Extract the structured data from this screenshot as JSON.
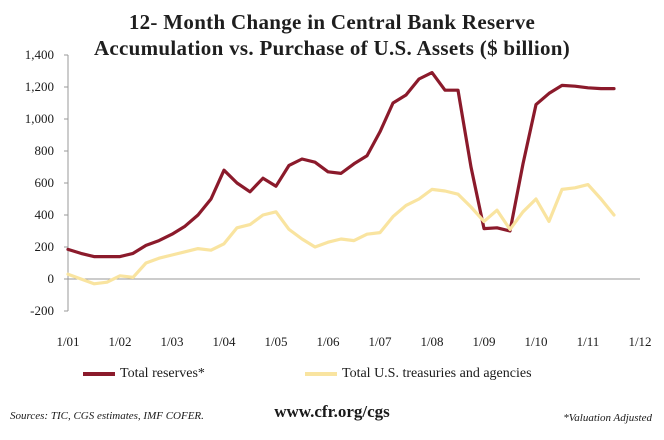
{
  "title_line1": "12- Month Change in Central Bank Reserve",
  "title_line2": "Accumulation vs. Purchase of U.S. Assets ($ billion)",
  "footer": {
    "sources": "Sources: TIC, CGS estimates, IMF COFER.",
    "site": "www.cfr.org/cgs",
    "note": "*Valuation Adjusted"
  },
  "colors": {
    "reserves": "#8b1a2b",
    "us_assets": "#f9e4a0",
    "axis": "#999999"
  },
  "chart_data": {
    "type": "line",
    "xlabel": "",
    "ylabel": "",
    "ylim": [
      -200,
      1400
    ],
    "yticks": [
      -200,
      0,
      200,
      400,
      600,
      800,
      1000,
      1200,
      1400
    ],
    "ytick_labels": [
      "-200",
      "0",
      "200",
      "400",
      "600",
      "800",
      "1,000",
      "1,200",
      "1,400"
    ],
    "xlim": [
      2001.0,
      2012.0
    ],
    "xticks": [
      2001,
      2002,
      2003,
      2004,
      2005,
      2006,
      2007,
      2008,
      2009,
      2010,
      2011,
      2012
    ],
    "xtick_labels": [
      "1/01",
      "1/02",
      "1/03",
      "1/04",
      "1/05",
      "1/06",
      "1/07",
      "1/08",
      "1/09",
      "1/10",
      "1/11",
      "1/12"
    ],
    "grid": false,
    "legend_position": "bottom",
    "series": [
      {
        "name": "Total reserves*",
        "x": [
          2001.0,
          2001.25,
          2001.5,
          2001.75,
          2002.0,
          2002.25,
          2002.5,
          2002.75,
          2003.0,
          2003.25,
          2003.5,
          2003.75,
          2004.0,
          2004.25,
          2004.5,
          2004.75,
          2005.0,
          2005.25,
          2005.5,
          2005.75,
          2006.0,
          2006.25,
          2006.5,
          2006.75,
          2007.0,
          2007.25,
          2007.5,
          2007.75,
          2008.0,
          2008.25,
          2008.5,
          2008.75,
          2009.0,
          2009.25,
          2009.5,
          2009.75,
          2010.0,
          2010.25,
          2010.5,
          2010.75,
          2011.0,
          2011.25,
          2011.5
        ],
        "values": [
          185,
          160,
          140,
          140,
          140,
          160,
          210,
          240,
          280,
          330,
          400,
          500,
          680,
          600,
          545,
          630,
          580,
          710,
          750,
          730,
          670,
          660,
          720,
          770,
          920,
          1100,
          1150,
          1250,
          1290,
          1180,
          1180,
          700,
          315,
          320,
          300,
          720,
          1090,
          1160,
          1210,
          1205,
          1195,
          1190,
          1190
        ]
      },
      {
        "name": "Total U.S. treasuries and agencies",
        "x": [
          2001.0,
          2001.25,
          2001.5,
          2001.75,
          2002.0,
          2002.25,
          2002.5,
          2002.75,
          2003.0,
          2003.25,
          2003.5,
          2003.75,
          2004.0,
          2004.25,
          2004.5,
          2004.75,
          2005.0,
          2005.25,
          2005.5,
          2005.75,
          2006.0,
          2006.25,
          2006.5,
          2006.75,
          2007.0,
          2007.25,
          2007.5,
          2007.75,
          2008.0,
          2008.25,
          2008.5,
          2008.75,
          2009.0,
          2009.25,
          2009.5,
          2009.75,
          2010.0,
          2010.25,
          2010.5,
          2010.75,
          2011.0,
          2011.25,
          2011.5
        ],
        "values": [
          30,
          0,
          -30,
          -20,
          20,
          10,
          100,
          130,
          150,
          170,
          190,
          180,
          220,
          320,
          340,
          400,
          420,
          310,
          250,
          200,
          230,
          250,
          240,
          280,
          290,
          390,
          460,
          500,
          560,
          550,
          530,
          450,
          360,
          430,
          310,
          420,
          500,
          360,
          560,
          570,
          590,
          500,
          400
        ]
      }
    ]
  }
}
